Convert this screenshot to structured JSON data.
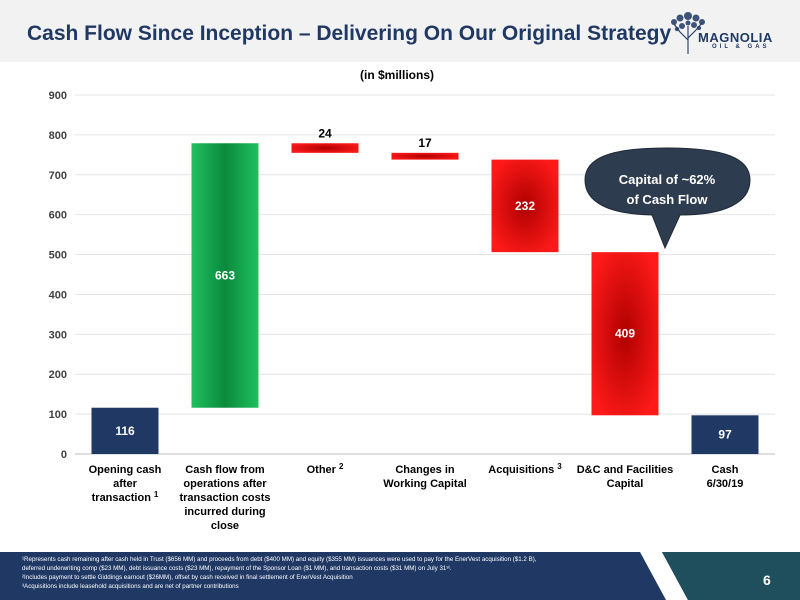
{
  "slide": {
    "title": "Cash Flow Since Inception – Delivering On Our Original Strategy",
    "page_number": "6"
  },
  "logo": {
    "name": "MAGNOLIA",
    "sub": "OIL & GAS"
  },
  "colors": {
    "navy": "#1f3864",
    "green": "#00b050",
    "red": "#ff0000",
    "callout": "#2e3c4f"
  },
  "callout": {
    "line1": "Capital of ~62%",
    "line2": "of Cash Flow"
  },
  "footnotes": [
    "¹Represents cash remaining after cash held in Trust ($656 MM) and proceeds from debt ($400 MM) and equity ($355 MM) issuances were used to pay for the EnerVest acquisition ($1.2 B),",
    "deferred underwriting comp ($23 MM), debt issuance costs ($23 MM), repayment of the Sponsor Loan ($1 MM), and transaction costs ($31 MM) on July 31ˢᵗ.",
    "²Includes payment to settle Giddings earnout ($26MM), offset by cash received in final settlement of EnerVest Acquisition",
    "³Acquisitions include leasehold acquisitions and are net of partner contributions"
  ],
  "chart_data": {
    "type": "bar",
    "subtype": "waterfall",
    "title": "",
    "subtitle": "(in $millions)",
    "xlabel": "",
    "ylabel": "",
    "ylim": [
      0,
      900
    ],
    "yticks": [
      0,
      100,
      200,
      300,
      400,
      500,
      600,
      700,
      800,
      900
    ],
    "grid": true,
    "legend": "none",
    "categories": [
      {
        "lines": [
          "Opening cash",
          "after",
          "transaction"
        ],
        "sup": "1"
      },
      {
        "lines": [
          "Cash flow from",
          "operations after",
          "transaction costs",
          "incurred during",
          "close"
        ],
        "sup": ""
      },
      {
        "lines": [
          "Other"
        ],
        "sup": "2"
      },
      {
        "lines": [
          "Changes in",
          "Working Capital"
        ],
        "sup": ""
      },
      {
        "lines": [
          "Acquisitions"
        ],
        "sup": "3"
      },
      {
        "lines": [
          "D&C and Facilities",
          "Capital"
        ],
        "sup": ""
      },
      {
        "lines": [
          "Cash",
          "6/30/19"
        ],
        "sup": ""
      }
    ],
    "bars": [
      {
        "label": "116",
        "base": 0,
        "top": 116,
        "kind": "total"
      },
      {
        "label": "663",
        "base": 116,
        "top": 779,
        "kind": "increase"
      },
      {
        "label": "24",
        "base": 755,
        "top": 779,
        "kind": "decrease"
      },
      {
        "label": "17",
        "base": 738,
        "top": 755,
        "kind": "decrease"
      },
      {
        "label": "232",
        "base": 506,
        "top": 738,
        "kind": "decrease"
      },
      {
        "label": "409",
        "base": 97,
        "top": 506,
        "kind": "decrease"
      },
      {
        "label": "97",
        "base": 0,
        "top": 97,
        "kind": "total"
      }
    ]
  }
}
